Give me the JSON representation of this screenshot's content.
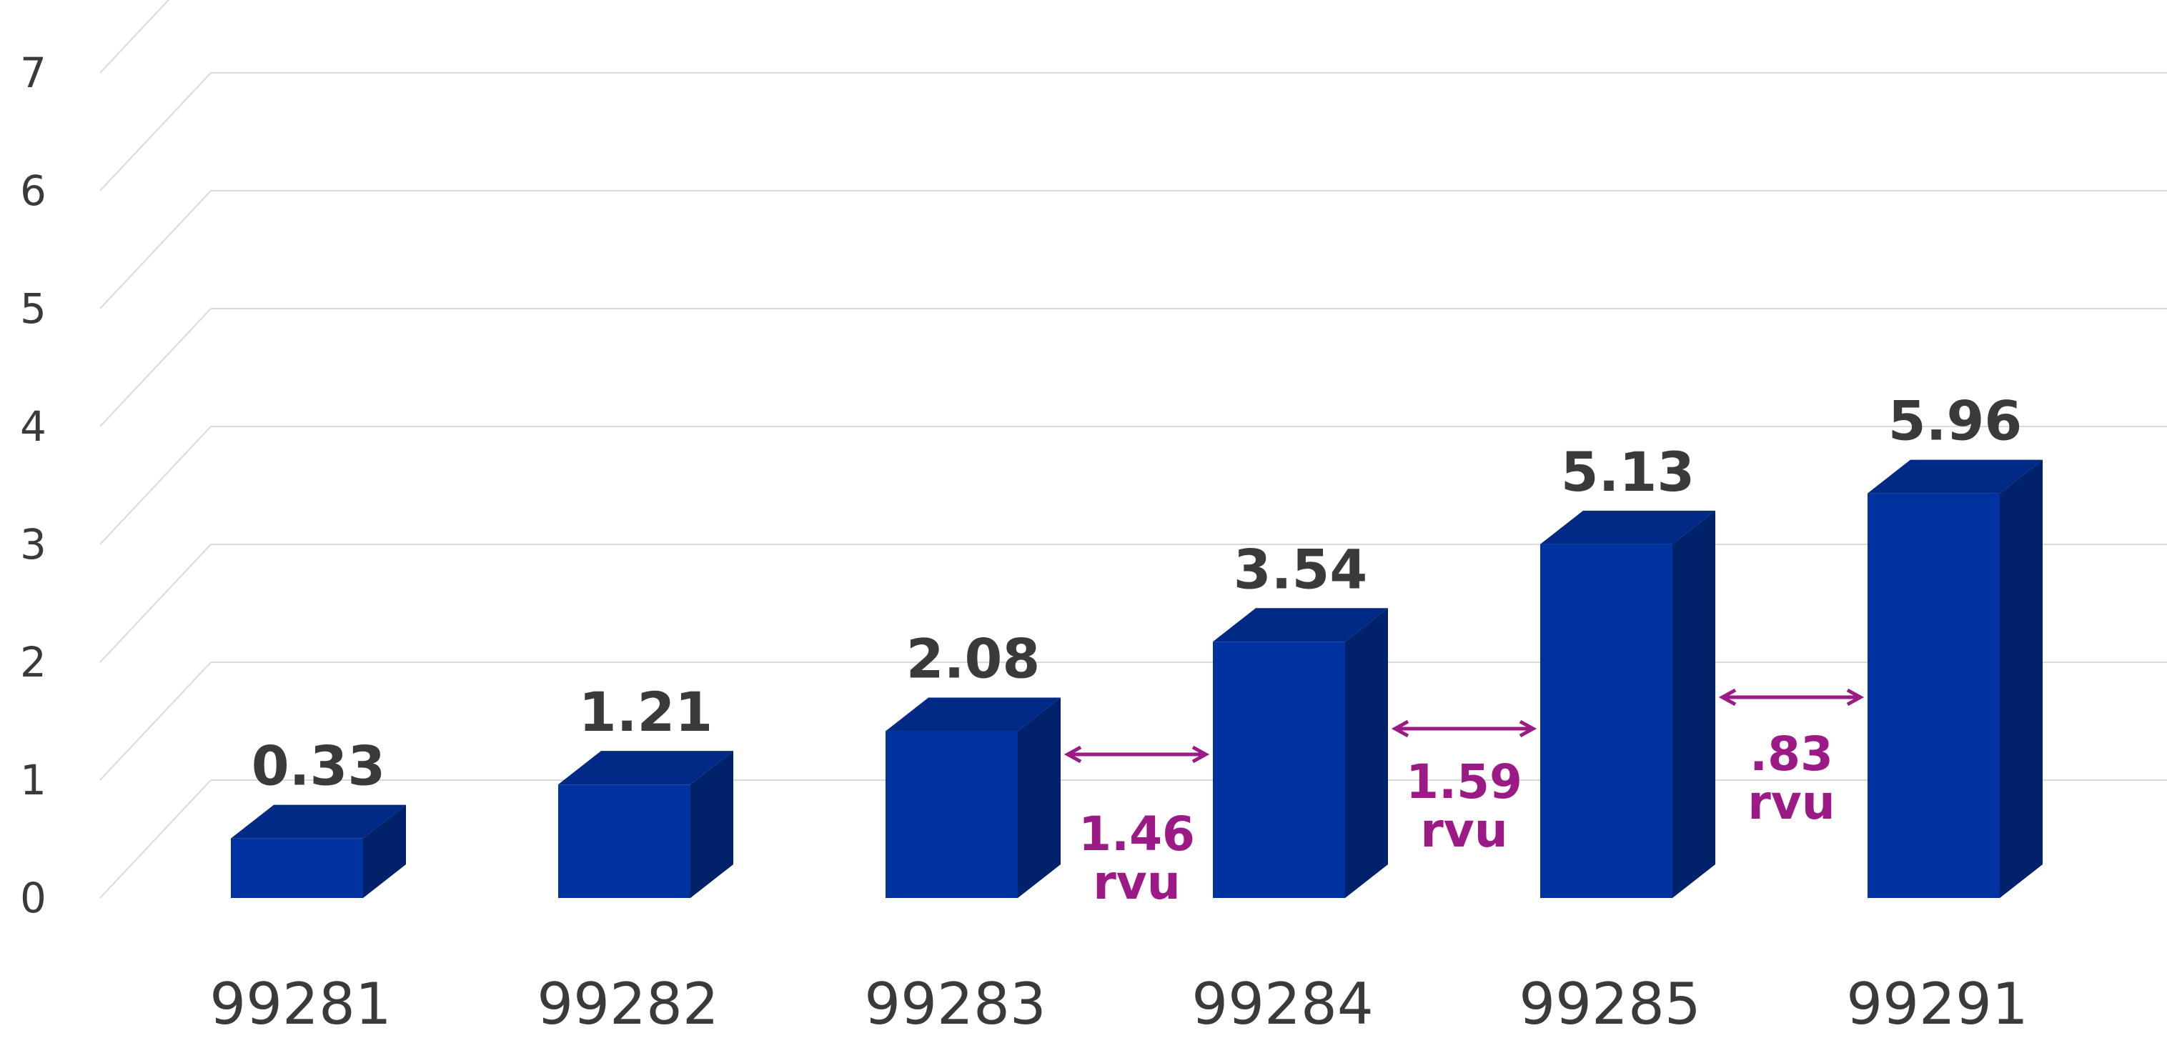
{
  "chart_data": {
    "type": "bar",
    "style": "3d-column",
    "categories": [
      "99281",
      "99282",
      "99283",
      "99284",
      "99285",
      "99291"
    ],
    "values": [
      0.33,
      1.21,
      2.08,
      3.54,
      5.13,
      5.96
    ],
    "value_labels": [
      "0.33",
      "1.21",
      "2.08",
      "3.54",
      "5.13",
      "5.96"
    ],
    "ylim": [
      0,
      7
    ],
    "yticks": [
      0,
      1,
      2,
      3,
      4,
      5,
      6,
      7
    ],
    "grid": true,
    "legend": "none",
    "annotations": [
      {
        "between": [
          "99283",
          "99284"
        ],
        "value": "1.46",
        "unit": "rvu"
      },
      {
        "between": [
          "99284",
          "99285"
        ],
        "value": "1.59",
        "unit": "rvu"
      },
      {
        "between": [
          "99285",
          "99291"
        ],
        "value": ".83",
        "unit": "rvu"
      }
    ],
    "colors": {
      "bar_front": "#0033a0",
      "bar_side": "#00226b",
      "bar_top": "#002a86",
      "value_label": "#3a3a3a",
      "annotation": "#9b1a86",
      "grid": "#d9d9d9"
    }
  }
}
